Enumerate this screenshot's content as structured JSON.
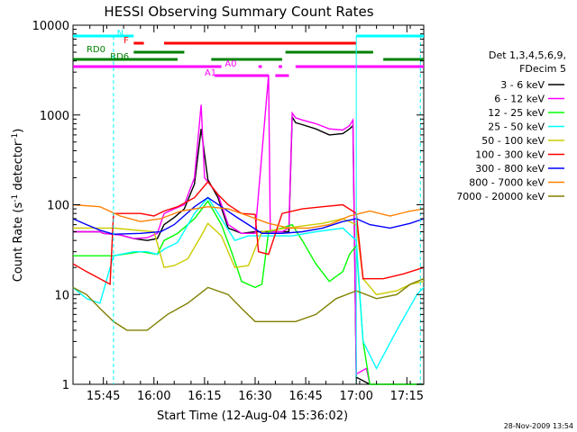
{
  "chart_data": {
    "type": "line",
    "title": "HESSI Observing Summary Count Rates",
    "xlabel": "Start Time (12-Aug-04 15:36:02)",
    "ylabel_main": "Count Rate (s",
    "ylabel_sup1": "-1",
    "ylabel_mid": " detector",
    "ylabel_sup2": "-1",
    "ylabel_end": ")",
    "yscale": "log",
    "ylim": [
      1,
      10000
    ],
    "xlim_minutes_after_15_36": [
      0,
      104
    ],
    "x_ticks": [
      {
        "label": "15:45",
        "minute": 9
      },
      {
        "label": "16:00",
        "minute": 24
      },
      {
        "label": "16:15",
        "minute": 39
      },
      {
        "label": "16:30",
        "minute": 54
      },
      {
        "label": "16:45",
        "minute": 69
      },
      {
        "label": "17:00",
        "minute": 84
      },
      {
        "label": "17:15",
        "minute": 99
      }
    ],
    "y_ticks": [
      {
        "label": "1",
        "value": 1
      },
      {
        "label": "10",
        "value": 10
      },
      {
        "label": "100",
        "value": 100
      },
      {
        "label": "1000",
        "value": 1000
      },
      {
        "label": "10000",
        "value": 10000
      }
    ],
    "legend_header": [
      "Det 1,3,4,5,6,9,",
      "FDecim 5"
    ],
    "legend_placement": "right",
    "timestamp": "28-Nov-2009 13:54",
    "series": [
      {
        "name": "3 - 6 keV",
        "color": "#000000",
        "points": [
          [
            0,
            50
          ],
          [
            8,
            50
          ],
          [
            9,
            48
          ],
          [
            14,
            46
          ],
          [
            18,
            42
          ],
          [
            22,
            40
          ],
          [
            25,
            42
          ],
          [
            27,
            60
          ],
          [
            30,
            72
          ],
          [
            33,
            90
          ],
          [
            36,
            170
          ],
          [
            38,
            700
          ],
          [
            40,
            190
          ],
          [
            43,
            120
          ],
          [
            46,
            55
          ],
          [
            50,
            48
          ],
          [
            54,
            50
          ],
          [
            60,
            50
          ],
          [
            64,
            50
          ],
          [
            65,
            950
          ],
          [
            66,
            820
          ],
          [
            68,
            780
          ],
          [
            72,
            700
          ],
          [
            76,
            600
          ],
          [
            80,
            620
          ],
          [
            82,
            700
          ],
          [
            83,
            760
          ],
          [
            84,
            1.2
          ],
          [
            88,
            1
          ],
          [
            104,
            1
          ]
        ]
      },
      {
        "name": "6 - 12 keV",
        "color": "#ff00ff",
        "points": [
          [
            0,
            50
          ],
          [
            8,
            50
          ],
          [
            9,
            48
          ],
          [
            14,
            46
          ],
          [
            18,
            42
          ],
          [
            22,
            43
          ],
          [
            25,
            48
          ],
          [
            27,
            80
          ],
          [
            30,
            90
          ],
          [
            33,
            100
          ],
          [
            36,
            200
          ],
          [
            38,
            1300
          ],
          [
            39,
            200
          ],
          [
            43,
            130
          ],
          [
            46,
            60
          ],
          [
            50,
            48
          ],
          [
            54,
            48
          ],
          [
            58,
            2800
          ],
          [
            58.5,
            50
          ],
          [
            62,
            50
          ],
          [
            64,
            55
          ],
          [
            65,
            1050
          ],
          [
            66,
            930
          ],
          [
            68,
            880
          ],
          [
            72,
            800
          ],
          [
            76,
            700
          ],
          [
            80,
            680
          ],
          [
            82,
            760
          ],
          [
            83,
            880
          ],
          [
            84,
            1.3
          ],
          [
            87,
            1.5
          ],
          [
            88,
            1
          ],
          [
            104,
            1
          ]
        ]
      },
      {
        "name": "12 - 25 keV",
        "color": "#00ff00",
        "points": [
          [
            0,
            27
          ],
          [
            12,
            27
          ],
          [
            20,
            30
          ],
          [
            25,
            28
          ],
          [
            27,
            40
          ],
          [
            31,
            48
          ],
          [
            36,
            70
          ],
          [
            40,
            110
          ],
          [
            44,
            60
          ],
          [
            47,
            30
          ],
          [
            50,
            14
          ],
          [
            54,
            12
          ],
          [
            56,
            13
          ],
          [
            58,
            50
          ],
          [
            62,
            55
          ],
          [
            65,
            60
          ],
          [
            68,
            40
          ],
          [
            72,
            22
          ],
          [
            76,
            14
          ],
          [
            80,
            18
          ],
          [
            82,
            28
          ],
          [
            84,
            35
          ],
          [
            86,
            3
          ],
          [
            88,
            1
          ],
          [
            104,
            1
          ]
        ]
      },
      {
        "name": "25 - 50 keV",
        "color": "#00ffff",
        "points": [
          [
            0,
            12
          ],
          [
            4,
            9
          ],
          [
            8,
            8
          ],
          [
            12,
            27
          ],
          [
            18,
            30
          ],
          [
            22,
            30
          ],
          [
            25,
            28
          ],
          [
            27,
            32
          ],
          [
            31,
            38
          ],
          [
            36,
            80
          ],
          [
            40,
            120
          ],
          [
            44,
            70
          ],
          [
            48,
            40
          ],
          [
            52,
            45
          ],
          [
            56,
            45
          ],
          [
            60,
            45
          ],
          [
            65,
            45
          ],
          [
            72,
            50
          ],
          [
            80,
            55
          ],
          [
            84,
            40
          ],
          [
            86,
            3
          ],
          [
            90,
            1.5
          ],
          [
            96,
            4
          ],
          [
            102,
            10
          ],
          [
            104,
            12
          ]
        ]
      },
      {
        "name": "50 - 100 keV",
        "color": "#cccc00",
        "points": [
          [
            0,
            55
          ],
          [
            12,
            55
          ],
          [
            24,
            50
          ],
          [
            27,
            20
          ],
          [
            30,
            21
          ],
          [
            34,
            25
          ],
          [
            38,
            45
          ],
          [
            40,
            62
          ],
          [
            44,
            45
          ],
          [
            48,
            20
          ],
          [
            52,
            21
          ],
          [
            56,
            50
          ],
          [
            62,
            54
          ],
          [
            68,
            58
          ],
          [
            74,
            62
          ],
          [
            80,
            70
          ],
          [
            84,
            60
          ],
          [
            86,
            15
          ],
          [
            90,
            10
          ],
          [
            96,
            11
          ],
          [
            100,
            13
          ],
          [
            104,
            14
          ]
        ]
      },
      {
        "name": "100 - 300 keV",
        "color": "#ff0000",
        "points": [
          [
            0,
            22
          ],
          [
            4,
            18
          ],
          [
            8,
            15
          ],
          [
            11,
            13
          ],
          [
            12,
            80
          ],
          [
            20,
            80
          ],
          [
            24,
            75
          ],
          [
            27,
            85
          ],
          [
            31,
            95
          ],
          [
            36,
            120
          ],
          [
            40,
            180
          ],
          [
            43,
            130
          ],
          [
            46,
            100
          ],
          [
            50,
            80
          ],
          [
            54,
            78
          ],
          [
            55,
            30
          ],
          [
            58,
            28
          ],
          [
            62,
            80
          ],
          [
            68,
            90
          ],
          [
            74,
            95
          ],
          [
            80,
            100
          ],
          [
            84,
            80
          ],
          [
            86,
            15
          ],
          [
            92,
            15
          ],
          [
            98,
            17
          ],
          [
            104,
            20
          ]
        ]
      },
      {
        "name": "300 - 800 keV",
        "color": "#0000ff",
        "points": [
          [
            0,
            70
          ],
          [
            4,
            60
          ],
          [
            8,
            52
          ],
          [
            12,
            47
          ],
          [
            20,
            48
          ],
          [
            26,
            50
          ],
          [
            30,
            60
          ],
          [
            36,
            95
          ],
          [
            40,
            120
          ],
          [
            44,
            95
          ],
          [
            48,
            75
          ],
          [
            52,
            60
          ],
          [
            56,
            48
          ],
          [
            62,
            48
          ],
          [
            68,
            50
          ],
          [
            74,
            55
          ],
          [
            80,
            65
          ],
          [
            84,
            70
          ],
          [
            88,
            60
          ],
          [
            94,
            55
          ],
          [
            100,
            62
          ],
          [
            104,
            70
          ]
        ]
      },
      {
        "name": "800 - 7000 keV",
        "color": "#ff8000",
        "points": [
          [
            0,
            100
          ],
          [
            8,
            95
          ],
          [
            14,
            75
          ],
          [
            20,
            65
          ],
          [
            26,
            70
          ],
          [
            32,
            85
          ],
          [
            40,
            95
          ],
          [
            46,
            90
          ],
          [
            52,
            75
          ],
          [
            58,
            62
          ],
          [
            64,
            55
          ],
          [
            70,
            55
          ],
          [
            76,
            60
          ],
          [
            82,
            75
          ],
          [
            88,
            85
          ],
          [
            94,
            75
          ],
          [
            100,
            85
          ],
          [
            104,
            90
          ]
        ]
      },
      {
        "name": "7000 - 20000 keV",
        "color": "#808000",
        "points": [
          [
            0,
            12
          ],
          [
            4,
            10
          ],
          [
            8,
            7
          ],
          [
            12,
            5
          ],
          [
            16,
            4
          ],
          [
            22,
            4
          ],
          [
            28,
            6
          ],
          [
            34,
            8
          ],
          [
            40,
            12
          ],
          [
            46,
            10
          ],
          [
            50,
            7
          ],
          [
            54,
            5
          ],
          [
            60,
            5
          ],
          [
            66,
            5
          ],
          [
            72,
            6
          ],
          [
            78,
            9
          ],
          [
            84,
            11
          ],
          [
            90,
            9
          ],
          [
            96,
            10
          ],
          [
            100,
            13
          ],
          [
            104,
            15
          ]
        ]
      }
    ],
    "flag_bars": [
      {
        "name": "N",
        "color": "#00ffff",
        "segments": [
          [
            0,
            18
          ],
          [
            84,
            104
          ]
        ]
      },
      {
        "name": "F",
        "color": "#ff0000",
        "segments": [
          [
            18,
            21
          ],
          [
            27,
            84
          ]
        ]
      },
      {
        "name": "RD0",
        "color": "#008000",
        "segments": [
          [
            18,
            33
          ],
          [
            63,
            89
          ]
        ]
      },
      {
        "name": "RD6",
        "color": "#008000",
        "segments": [
          [
            0,
            31
          ],
          [
            41,
            62
          ],
          [
            92,
            104
          ]
        ]
      },
      {
        "name": "A0",
        "color": "#ff00ff",
        "segments": [
          [
            0,
            44
          ],
          [
            55,
            56
          ],
          [
            61,
            62
          ],
          [
            66,
            104
          ]
        ]
      },
      {
        "name": "A1",
        "color": "#ff00ff",
        "segments": [
          [
            42,
            58
          ],
          [
            60,
            64
          ]
        ]
      }
    ]
  }
}
